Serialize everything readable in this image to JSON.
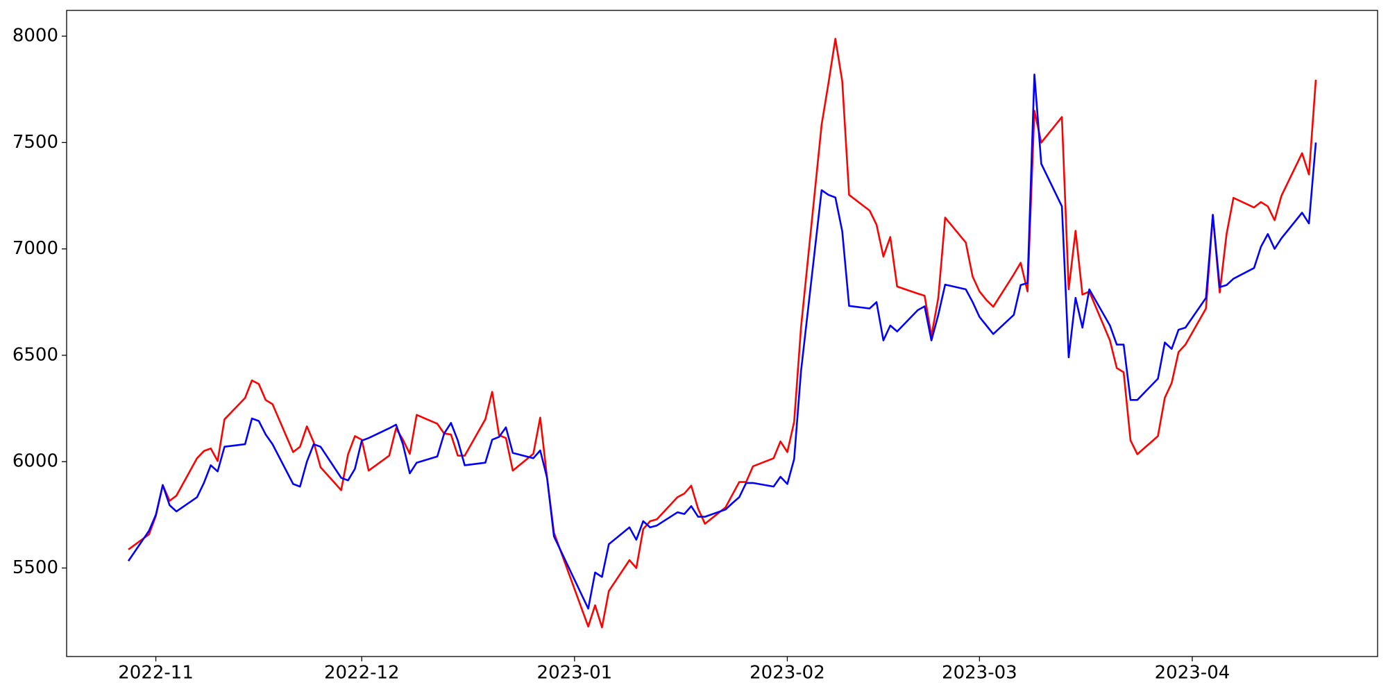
{
  "chart_data": {
    "type": "line",
    "x": [
      "2022-10-28",
      "2022-10-31",
      "2022-11-01",
      "2022-11-02",
      "2022-11-03",
      "2022-11-04",
      "2022-11-07",
      "2022-11-08",
      "2022-11-09",
      "2022-11-10",
      "2022-11-11",
      "2022-11-14",
      "2022-11-15",
      "2022-11-16",
      "2022-11-17",
      "2022-11-18",
      "2022-11-21",
      "2022-11-22",
      "2022-11-23",
      "2022-11-24",
      "2022-11-25",
      "2022-11-28",
      "2022-11-29",
      "2022-11-30",
      "2022-12-01",
      "2022-12-02",
      "2022-12-05",
      "2022-12-06",
      "2022-12-07",
      "2022-12-08",
      "2022-12-09",
      "2022-12-12",
      "2022-12-13",
      "2022-12-14",
      "2022-12-15",
      "2022-12-16",
      "2022-12-19",
      "2022-12-20",
      "2022-12-21",
      "2022-12-22",
      "2022-12-23",
      "2022-12-26",
      "2022-12-27",
      "2022-12-28",
      "2022-12-29",
      "2023-01-03",
      "2023-01-04",
      "2023-01-05",
      "2023-01-06",
      "2023-01-09",
      "2023-01-10",
      "2023-01-11",
      "2023-01-12",
      "2023-01-13",
      "2023-01-16",
      "2023-01-17",
      "2023-01-18",
      "2023-01-19",
      "2023-01-20",
      "2023-01-23",
      "2023-01-24",
      "2023-01-25",
      "2023-01-26",
      "2023-01-27",
      "2023-01-30",
      "2023-01-31",
      "2023-02-01",
      "2023-02-02",
      "2023-02-03",
      "2023-02-06",
      "2023-02-07",
      "2023-02-08",
      "2023-02-09",
      "2023-02-10",
      "2023-02-13",
      "2023-02-14",
      "2023-02-15",
      "2023-02-16",
      "2023-02-17",
      "2023-02-20",
      "2023-02-21",
      "2023-02-22",
      "2023-02-23",
      "2023-02-24",
      "2023-02-27",
      "2023-02-28",
      "2023-03-01",
      "2023-03-02",
      "2023-03-03",
      "2023-03-06",
      "2023-03-07",
      "2023-03-08",
      "2023-03-09",
      "2023-03-10",
      "2023-03-13",
      "2023-03-14",
      "2023-03-15",
      "2023-03-16",
      "2023-03-17",
      "2023-03-20",
      "2023-03-21",
      "2023-03-22",
      "2023-03-23",
      "2023-03-24",
      "2023-03-27",
      "2023-03-28",
      "2023-03-29",
      "2023-03-30",
      "2023-03-31",
      "2023-04-03",
      "2023-04-04",
      "2023-04-05",
      "2023-04-06",
      "2023-04-07",
      "2023-04-10",
      "2023-04-11",
      "2023-04-12",
      "2023-04-13",
      "2023-04-14",
      "2023-04-17",
      "2023-04-18",
      "2023-04-19"
    ],
    "series": [
      {
        "color": "#ff0000",
        "values": [
          5587,
          5658,
          5745,
          5890,
          5816,
          5840,
          6016,
          6050,
          6062,
          6003,
          6199,
          6299,
          6382,
          6365,
          6290,
          6270,
          6045,
          6070,
          6166,
          6091,
          5974,
          5866,
          6034,
          6120,
          6103,
          5958,
          6028,
          6157,
          6103,
          6037,
          6220,
          6178,
          6132,
          6128,
          6028,
          6028,
          6199,
          6328,
          6124,
          6111,
          5958,
          6037,
          6207,
          5924,
          5666,
          5225,
          5325,
          5221,
          5392,
          5537,
          5500,
          5683,
          5720,
          5729,
          5833,
          5850,
          5887,
          5779,
          5708,
          5785,
          5845,
          5904,
          5904,
          5978,
          6016,
          6095,
          6045,
          6187,
          6631,
          7584,
          7780,
          7988,
          7788,
          7254,
          7180,
          7114,
          6964,
          7056,
          6823,
          6790,
          6780,
          6590,
          6770,
          7147,
          7030,
          6870,
          6800,
          6760,
          6728,
          6880,
          6935,
          6800,
          7650,
          7500,
          7620,
          6810,
          7085,
          6785,
          6800,
          6570,
          6440,
          6420,
          6100,
          6035,
          6120,
          6300,
          6370,
          6515,
          6550,
          6720,
          7160,
          6795,
          7070,
          7240,
          7195,
          7220,
          7200,
          7135,
          7250,
          7450,
          7350,
          7795
        ]
      },
      {
        "color": "#0000ff",
        "values": [
          5533,
          5675,
          5750,
          5890,
          5795,
          5766,
          5833,
          5900,
          5983,
          5954,
          6070,
          6082,
          6203,
          6191,
          6128,
          6082,
          5895,
          5883,
          6000,
          6082,
          6070,
          5924,
          5912,
          5966,
          6099,
          6111,
          6157,
          6174,
          6082,
          5945,
          5995,
          6024,
          6132,
          6182,
          6099,
          5983,
          5995,
          6103,
          6116,
          6161,
          6041,
          6016,
          6053,
          5924,
          5649,
          5309,
          5479,
          5458,
          5612,
          5691,
          5633,
          5720,
          5691,
          5700,
          5762,
          5754,
          5791,
          5741,
          5741,
          5775,
          5805,
          5833,
          5900,
          5900,
          5883,
          5929,
          5895,
          6012,
          6425,
          7276,
          7254,
          7242,
          7083,
          6732,
          6720,
          6750,
          6570,
          6640,
          6612,
          6712,
          6730,
          6570,
          6690,
          6832,
          6810,
          6750,
          6680,
          6640,
          6600,
          6690,
          6830,
          6840,
          7820,
          7400,
          7200,
          6490,
          6770,
          6630,
          6810,
          6640,
          6550,
          6550,
          6290,
          6290,
          6390,
          6560,
          6530,
          6620,
          6630,
          6770,
          7160,
          6820,
          6830,
          6860,
          6910,
          7010,
          7070,
          7000,
          7050,
          7170,
          7120,
          7500
        ]
      }
    ],
    "xlim": [
      "2022-10-19",
      "2023-04-28"
    ],
    "xticks": [
      {
        "value": "2022-11-01",
        "label": "2022-11"
      },
      {
        "value": "2022-12-01",
        "label": "2022-12"
      },
      {
        "value": "2023-01-01",
        "label": "2023-01"
      },
      {
        "value": "2023-02-01",
        "label": "2023-02"
      },
      {
        "value": "2023-03-01",
        "label": "2023-03"
      },
      {
        "value": "2023-04-01",
        "label": "2023-04"
      }
    ],
    "ylim": [
      5084,
      8121
    ],
    "yticks": [
      5500,
      6000,
      6500,
      7000,
      7500,
      8000
    ],
    "grid": false
  }
}
